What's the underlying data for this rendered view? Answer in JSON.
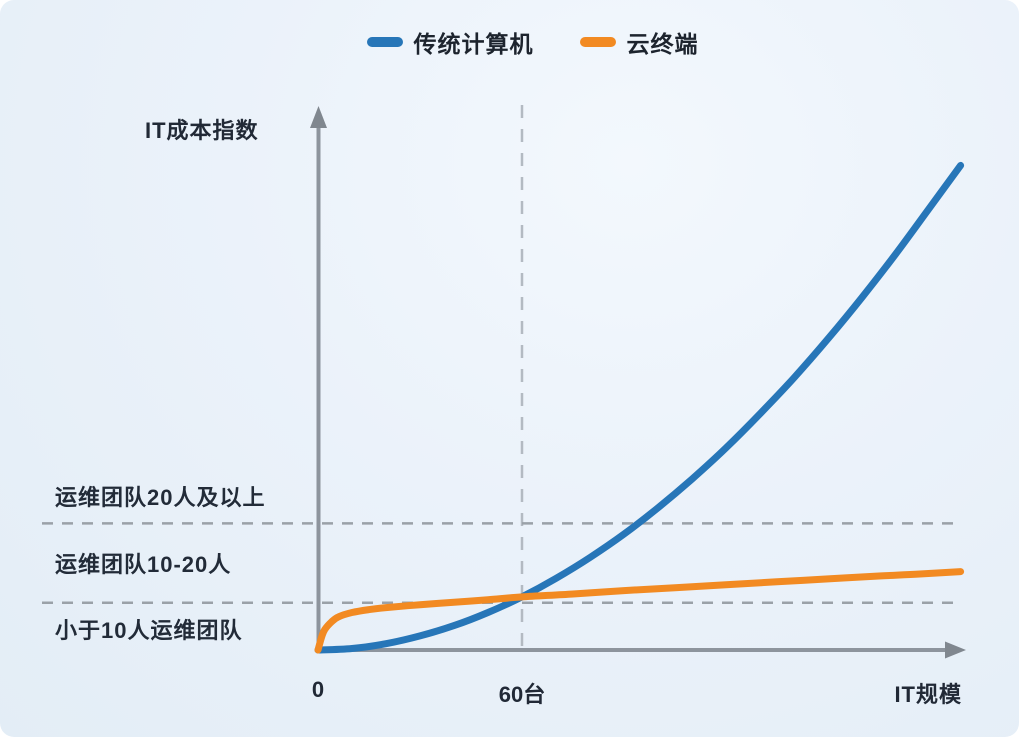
{
  "legend": {
    "position": "top-center",
    "items": [
      {
        "label": "传统计算机",
        "color": "#2776b8"
      },
      {
        "label": "云终端",
        "color": "#f28a22"
      }
    ]
  },
  "chart_data": {
    "type": "line",
    "title": "",
    "xlabel": "IT规模",
    "ylabel": "IT成本指数",
    "x_axis": {
      "range": [
        0,
        190
      ],
      "unit": "台",
      "ticks": [
        {
          "value": 0,
          "label": "0"
        },
        {
          "value": 60,
          "label": "60台"
        }
      ]
    },
    "y_axis": {
      "range": [
        0,
        100
      ],
      "ticks": []
    },
    "grid": false,
    "legend_position": "top-center",
    "series": [
      {
        "name": "传统计算机",
        "color": "#2776b8",
        "points": [
          [
            0,
            0
          ],
          [
            10,
            0.3
          ],
          [
            20,
            1.3
          ],
          [
            30,
            2.9
          ],
          [
            40,
            5.0
          ],
          [
            50,
            7.7
          ],
          [
            60,
            10.9
          ],
          [
            70,
            14.7
          ],
          [
            80,
            19.0
          ],
          [
            90,
            23.8
          ],
          [
            100,
            29.2
          ],
          [
            110,
            35.1
          ],
          [
            120,
            41.5
          ],
          [
            130,
            48.5
          ],
          [
            140,
            55.9
          ],
          [
            150,
            63.9
          ],
          [
            160,
            72.4
          ],
          [
            170,
            81.4
          ],
          [
            180,
            90.9
          ],
          [
            189,
            99.5
          ]
        ]
      },
      {
        "name": "云终端",
        "color": "#f28a22",
        "points": [
          [
            0,
            0
          ],
          [
            1,
            2.5
          ],
          [
            2,
            4.2
          ],
          [
            4,
            5.8
          ],
          [
            6,
            6.8
          ],
          [
            10,
            7.7
          ],
          [
            15,
            8.3
          ],
          [
            20,
            8.7
          ],
          [
            30,
            9.3
          ],
          [
            40,
            9.8
          ],
          [
            50,
            10.3
          ],
          [
            60,
            10.9
          ],
          [
            75,
            11.5
          ],
          [
            90,
            12.2
          ],
          [
            105,
            12.8
          ],
          [
            120,
            13.4
          ],
          [
            135,
            14.0
          ],
          [
            150,
            14.6
          ],
          [
            165,
            15.2
          ],
          [
            177,
            15.6
          ],
          [
            189,
            16.1
          ]
        ]
      }
    ],
    "reference_lines": {
      "horizontal": [
        {
          "y": 26
        },
        {
          "y": 9.7
        }
      ],
      "vertical": [
        {
          "x": 60,
          "tick_label": "60台"
        }
      ]
    },
    "team_bands": [
      {
        "label": "运维团队20人及以上",
        "position": "above_line",
        "line_y": 26
      },
      {
        "label": "运维团队10-20人",
        "position": "between_lines",
        "lines": [
          9.7,
          26
        ]
      },
      {
        "label": "小于10人运维团队",
        "position": "below_line",
        "line_y": 9.7
      }
    ]
  }
}
